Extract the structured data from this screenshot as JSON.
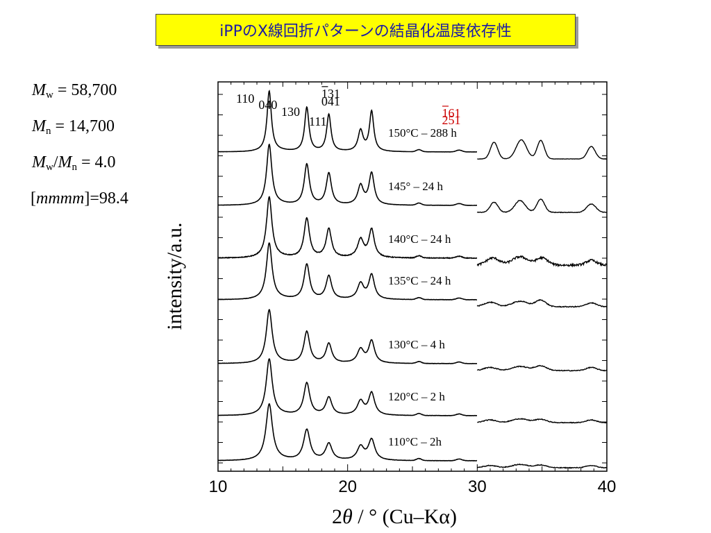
{
  "title": "iPPのX線回折パターンの結晶化温度依存性",
  "sample": {
    "mw": {
      "symbol": "M",
      "sub": "w",
      "rest": " = 58,700"
    },
    "mn": {
      "symbol": "M",
      "sub": "n",
      "rest": " = 14,700"
    },
    "ratio": {
      "sym1": "M",
      "sub1": "w",
      "slash": "/",
      "sym2": "M",
      "sub2": "n",
      "rest": " = 4.0"
    },
    "tacticity": {
      "open": "[",
      "italic": "mmmm",
      "close": "]=98.4"
    }
  },
  "chart_data": {
    "type": "line",
    "xlim": [
      10,
      40
    ],
    "xticks": [
      "10",
      "20",
      "30",
      "40"
    ],
    "xlabel": {
      "prefix": "2",
      "theta": "θ",
      "suffix": " / ° (Cu–Kα)"
    },
    "ylabel": "intensity/a.u.",
    "colors": {
      "line": "#000000",
      "annotation_red": "#cc0000"
    },
    "series": [
      {
        "name": "150°C – 288 h",
        "peaks": [
          [
            13.95,
            1.0,
            0.2
          ],
          [
            16.85,
            0.74,
            0.2
          ],
          [
            18.55,
            0.62,
            0.2
          ],
          [
            21.0,
            0.35,
            0.23
          ],
          [
            21.85,
            0.67,
            0.2
          ]
        ],
        "wide_peaks": [
          [
            31.3,
            0.28,
            0.28
          ],
          [
            33.4,
            0.32,
            0.4
          ],
          [
            34.9,
            0.31,
            0.28
          ],
          [
            38.8,
            0.21,
            0.3
          ]
        ],
        "noise": 0.003
      },
      {
        "name": "145° – 24 h",
        "peaks": [
          [
            13.95,
            1.0,
            0.24
          ],
          [
            16.85,
            0.68,
            0.24
          ],
          [
            18.55,
            0.53,
            0.24
          ],
          [
            21.0,
            0.32,
            0.26
          ],
          [
            21.85,
            0.53,
            0.24
          ]
        ],
        "wide_peaks": [
          [
            31.3,
            0.17,
            0.3
          ],
          [
            33.3,
            0.2,
            0.4
          ],
          [
            34.9,
            0.22,
            0.3
          ],
          [
            38.8,
            0.14,
            0.35
          ]
        ],
        "noise": 0.005
      },
      {
        "name": "140°C – 24 h",
        "peaks": [
          [
            13.95,
            1.0,
            0.25
          ],
          [
            16.85,
            0.66,
            0.25
          ],
          [
            18.55,
            0.48,
            0.25
          ],
          [
            21.0,
            0.3,
            0.28
          ],
          [
            21.85,
            0.47,
            0.25
          ]
        ],
        "wide_peaks": [
          [
            31.2,
            0.12,
            0.5
          ],
          [
            33.3,
            0.14,
            0.6
          ],
          [
            35.0,
            0.12,
            0.45
          ],
          [
            38.8,
            0.08,
            0.4
          ]
        ],
        "noise": 0.018
      },
      {
        "name": "135°C – 24 h",
        "peaks": [
          [
            13.95,
            1.0,
            0.26
          ],
          [
            16.85,
            0.63,
            0.26
          ],
          [
            18.55,
            0.42,
            0.26
          ],
          [
            21.0,
            0.28,
            0.29
          ],
          [
            21.85,
            0.44,
            0.26
          ]
        ],
        "wide_peaks": [
          [
            31.0,
            0.08,
            0.5
          ],
          [
            33.3,
            0.1,
            0.6
          ],
          [
            34.9,
            0.12,
            0.4
          ],
          [
            38.8,
            0.07,
            0.4
          ]
        ],
        "noise": 0.008
      },
      {
        "name": "130°C – 4 h",
        "peaks": [
          [
            13.95,
            1.0,
            0.27
          ],
          [
            16.85,
            0.6,
            0.27
          ],
          [
            18.55,
            0.37,
            0.27
          ],
          [
            21.0,
            0.26,
            0.3
          ],
          [
            21.85,
            0.42,
            0.27
          ]
        ],
        "wide_peaks": [
          [
            31.0,
            0.06,
            0.5
          ],
          [
            33.3,
            0.08,
            0.6
          ],
          [
            34.9,
            0.09,
            0.45
          ],
          [
            38.8,
            0.06,
            0.4
          ]
        ],
        "noise": 0.008
      },
      {
        "name": "120°C – 2 h",
        "peaks": [
          [
            13.95,
            1.0,
            0.28
          ],
          [
            16.85,
            0.58,
            0.28
          ],
          [
            18.55,
            0.32,
            0.28
          ],
          [
            21.0,
            0.25,
            0.3
          ],
          [
            21.85,
            0.4,
            0.28
          ]
        ],
        "wide_peaks": [
          [
            31.0,
            0.05,
            0.5
          ],
          [
            33.3,
            0.07,
            0.6
          ],
          [
            34.9,
            0.06,
            0.45
          ],
          [
            38.8,
            0.05,
            0.4
          ]
        ],
        "noise": 0.007
      },
      {
        "name": "110°C – 2h",
        "peaks": [
          [
            13.95,
            1.0,
            0.3
          ],
          [
            16.85,
            0.55,
            0.3
          ],
          [
            18.55,
            0.3,
            0.3
          ],
          [
            21.0,
            0.24,
            0.32
          ],
          [
            21.85,
            0.37,
            0.3
          ]
        ],
        "wide_peaks": [
          [
            31.0,
            0.04,
            0.5
          ],
          [
            33.3,
            0.06,
            0.6
          ],
          [
            34.9,
            0.05,
            0.45
          ],
          [
            38.8,
            0.04,
            0.4
          ]
        ],
        "noise": 0.007
      }
    ],
    "peak_labels": [
      {
        "text": "110",
        "x": 12.1,
        "y": 0.0,
        "color": "black",
        "bar": false
      },
      {
        "text": "040",
        "x": 13.85,
        "y": -0.15,
        "color": "black",
        "bar": false
      },
      {
        "text": "130",
        "x": 15.6,
        "y": -0.32,
        "color": "black",
        "bar": false
      },
      {
        "text": "111",
        "x": 17.7,
        "y": -0.55,
        "color": "black",
        "bar": false
      },
      {
        "text": "131",
        "x": 18.7,
        "y": 0.12,
        "color": "black",
        "bar": true
      },
      {
        "text": "041",
        "x": 18.7,
        "y": -0.07,
        "color": "black",
        "bar": false
      },
      {
        "text": "161",
        "x": 28.0,
        "y": -0.35,
        "color": "red",
        "bar": true
      },
      {
        "text": "251",
        "x": 28.0,
        "y": -0.52,
        "color": "red",
        "bar": false
      }
    ]
  }
}
